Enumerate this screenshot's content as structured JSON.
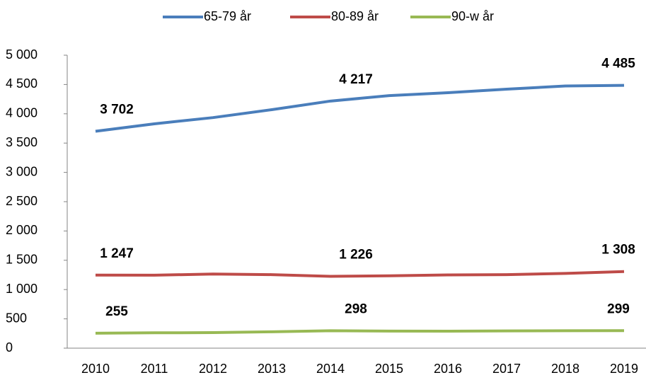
{
  "chart_data": {
    "type": "line",
    "categories": [
      "2010",
      "2011",
      "2012",
      "2013",
      "2014",
      "2015",
      "2016",
      "2017",
      "2018",
      "2019"
    ],
    "series": [
      {
        "name": "65-79 år",
        "color": "#4a7ebb",
        "values": [
          3702,
          3829,
          3935,
          4070,
          4217,
          4310,
          4360,
          4420,
          4475,
          4485
        ],
        "value_labels": [
          "3 702",
          null,
          null,
          null,
          "4 217",
          null,
          null,
          null,
          null,
          "4 485"
        ]
      },
      {
        "name": "80-89 år",
        "color": "#be4b48",
        "values": [
          1247,
          1245,
          1265,
          1255,
          1226,
          1235,
          1250,
          1255,
          1275,
          1308
        ],
        "value_labels": [
          "1 247",
          null,
          null,
          null,
          "1 226",
          null,
          null,
          null,
          null,
          "1 308"
        ]
      },
      {
        "name": "90-w år",
        "color": "#98b954",
        "values": [
          255,
          262,
          265,
          280,
          298,
          292,
          290,
          295,
          297,
          299
        ],
        "value_labels": [
          "255",
          null,
          null,
          null,
          "298",
          null,
          null,
          null,
          null,
          "299"
        ]
      }
    ],
    "ylim": [
      0,
      5000
    ],
    "yticks": [
      0,
      500,
      {
        "value": 1000,
        "label": "1 000"
      },
      {
        "value": 1500,
        "label": "1 500"
      },
      {
        "value": 2000,
        "label": "2 000"
      },
      {
        "value": 2500,
        "label": "2 500"
      },
      {
        "value": 3000,
        "label": "3 000"
      },
      {
        "value": 3500,
        "label": "3 500"
      },
      {
        "value": 4000,
        "label": "4 000"
      },
      {
        "value": 4500,
        "label": "4 500"
      },
      {
        "value": 5000,
        "label": "5 000"
      }
    ],
    "legend": "top"
  }
}
